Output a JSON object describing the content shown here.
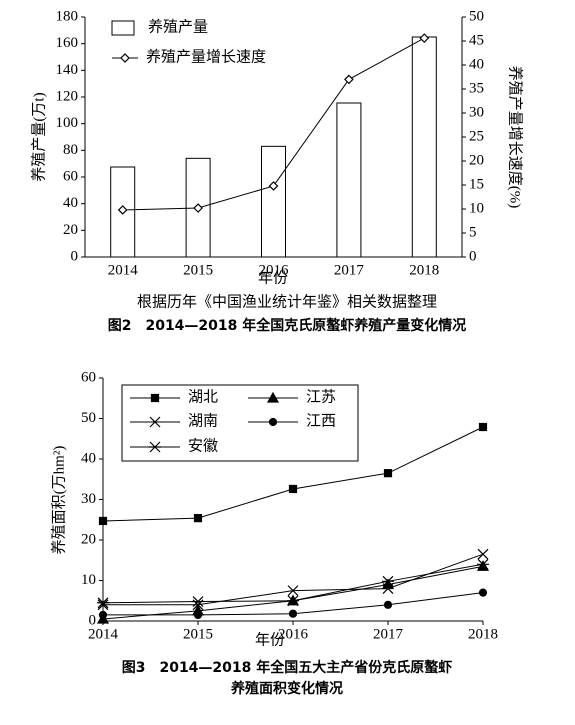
{
  "chart_data": [
    {
      "type": "bar",
      "categories": [
        "2014",
        "2015",
        "2016",
        "2017",
        "2018"
      ],
      "series": [
        {
          "name": "养殖产量",
          "kind": "bar",
          "color": "#000000",
          "values": [
            67.5,
            74,
            83,
            115.5,
            165
          ]
        },
        {
          "name": "养殖产量增长速度",
          "kind": "line",
          "marker": "diamond",
          "axis": "y2",
          "color": "#000000",
          "values": [
            9.8,
            10.2,
            14.8,
            37,
            45.6
          ]
        }
      ],
      "ylim": [
        0,
        180
      ],
      "yticks": [
        0,
        20,
        40,
        60,
        80,
        100,
        120,
        140,
        160,
        180
      ],
      "y2lim": [
        0,
        50
      ],
      "y2ticks": [
        0,
        5,
        10,
        15,
        20,
        25,
        30,
        35,
        40,
        45,
        50
      ],
      "ylabel": "养殖产量(万t)",
      "y2label": "养殖产量增长速度(%)",
      "xlabel": "年份",
      "note": "根据历年《中国渔业统计年鉴》相关数据整理",
      "caption": [
        "图2　2014—2018 年全国克氏原螯虾养殖产量变化情况"
      ]
    },
    {
      "type": "line",
      "x": [
        2014,
        2015,
        2016,
        2017,
        2018
      ],
      "series": [
        {
          "name": "湖北",
          "marker": "square",
          "color": "#000000",
          "values": [
            24.7,
            25.4,
            32.6,
            36.5,
            47.9
          ]
        },
        {
          "name": "江苏",
          "marker": "triangle",
          "color": "#000000",
          "values": [
            0.5,
            2.5,
            5,
            9,
            13.5
          ]
        },
        {
          "name": "湖南",
          "marker": "x",
          "color": "#000000",
          "values": [
            4,
            4,
            7.5,
            8,
            16.5
          ]
        },
        {
          "name": "江西",
          "marker": "circle",
          "color": "#000000",
          "values": [
            1.5,
            1.5,
            1.8,
            4,
            7
          ]
        },
        {
          "name": "安徽",
          "marker": "asterisk",
          "color": "#000000",
          "values": [
            4.5,
            4.8,
            5,
            9.8,
            14
          ]
        }
      ],
      "xlim": [
        2014,
        2018
      ],
      "xticks": [
        2014,
        2015,
        2016,
        2017,
        2018
      ],
      "ylim": [
        0,
        60
      ],
      "yticks": [
        0,
        10,
        20,
        30,
        40,
        50,
        60
      ],
      "ylabel": "养殖面积(万hm²)",
      "xlabel": "年份",
      "caption": [
        "图3　2014—2018 年全国五大主产省份克氏原螯虾",
        "养殖面积变化情况"
      ]
    }
  ]
}
